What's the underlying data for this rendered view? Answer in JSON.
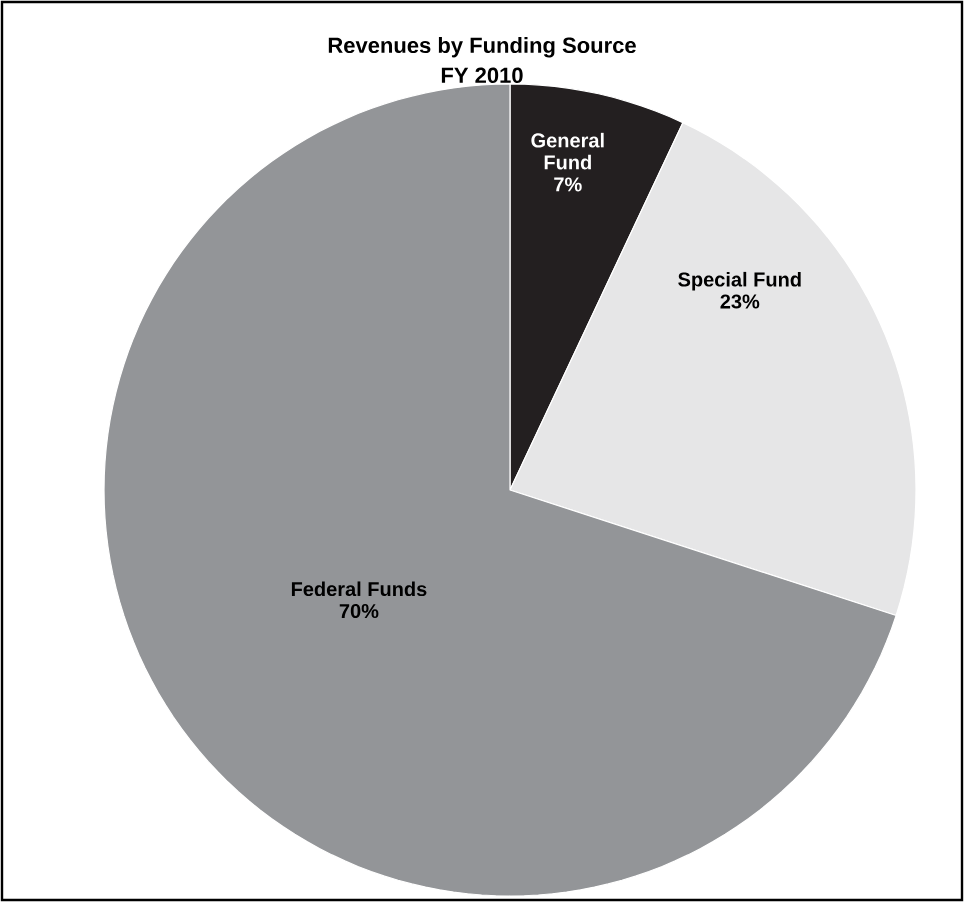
{
  "chart_data": {
    "type": "pie",
    "title": "Revenues by Funding Source",
    "subtitle": "FY 2010",
    "categories": [
      "General Fund",
      "Special Fund",
      "Federal Funds"
    ],
    "values": [
      7,
      23,
      70
    ],
    "colors": [
      "#231f20",
      "#e6e6e7",
      "#939598"
    ],
    "value_labels": [
      "7%",
      "23%",
      "70%"
    ]
  }
}
